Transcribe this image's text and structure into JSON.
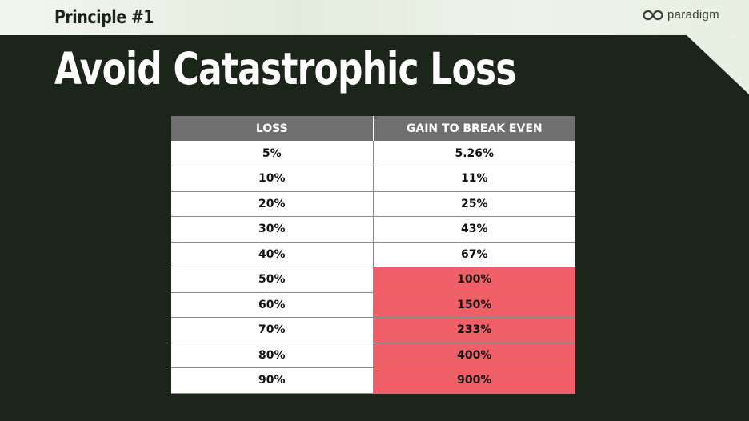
{
  "header": {
    "principle": "Principle #1",
    "logo_text": "paradigm",
    "logo_icon": "infinity-icon"
  },
  "title": "Avoid Catastrophic Loss",
  "colors": {
    "background": "#1b2519",
    "header_band": "#e8efe3",
    "table_header": "#6f6f6f",
    "highlight": "#ef5f67"
  },
  "table": {
    "headers": [
      "LOSS",
      "GAIN TO BREAK EVEN"
    ],
    "rows": [
      {
        "loss": "5%",
        "gain": "5.26%",
        "highlight": false
      },
      {
        "loss": "10%",
        "gain": "11%",
        "highlight": false
      },
      {
        "loss": "20%",
        "gain": "25%",
        "highlight": false
      },
      {
        "loss": "30%",
        "gain": "43%",
        "highlight": false
      },
      {
        "loss": "40%",
        "gain": "67%",
        "highlight": false
      },
      {
        "loss": "50%",
        "gain": "100%",
        "highlight": true
      },
      {
        "loss": "60%",
        "gain": "150%",
        "highlight": true
      },
      {
        "loss": "70%",
        "gain": "233%",
        "highlight": true
      },
      {
        "loss": "80%",
        "gain": "400%",
        "highlight": true
      },
      {
        "loss": "90%",
        "gain": "900%",
        "highlight": true
      }
    ]
  }
}
